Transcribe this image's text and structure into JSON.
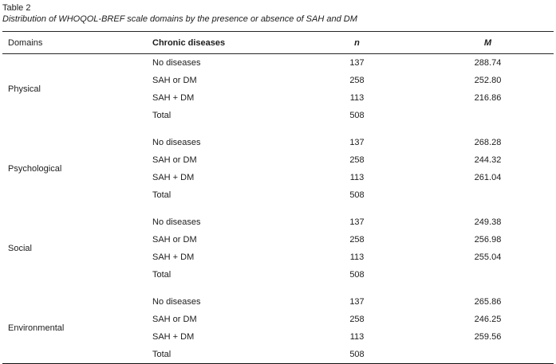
{
  "table": {
    "label": "Table 2",
    "caption": "Distribution of WHOQOL-BREF scale domains by the presence or absence of SAH and DM",
    "columns": [
      "Domains",
      "Chronic diseases",
      "n",
      "M"
    ],
    "sections": [
      {
        "domain": "Physical",
        "rows": [
          {
            "disease": "No diseases",
            "n": "137",
            "m": "288.74"
          },
          {
            "disease": "SAH or DM",
            "n": "258",
            "m": "252.80"
          },
          {
            "disease": "SAH + DM",
            "n": "113",
            "m": "216.86"
          },
          {
            "disease": "Total",
            "n": "508",
            "m": ""
          }
        ]
      },
      {
        "domain": "Psychological",
        "rows": [
          {
            "disease": "No diseases",
            "n": "137",
            "m": "268.28"
          },
          {
            "disease": "SAH or DM",
            "n": "258",
            "m": "244.32"
          },
          {
            "disease": "SAH + DM",
            "n": "113",
            "m": "261.04"
          },
          {
            "disease": "Total",
            "n": "508",
            "m": ""
          }
        ]
      },
      {
        "domain": "Social",
        "rows": [
          {
            "disease": "No diseases",
            "n": "137",
            "m": "249.38"
          },
          {
            "disease": "SAH or DM",
            "n": "258",
            "m": "256.98"
          },
          {
            "disease": "SAH + DM",
            "n": "113",
            "m": "255.04"
          },
          {
            "disease": "Total",
            "n": "508",
            "m": ""
          }
        ]
      },
      {
        "domain": "Environmental",
        "rows": [
          {
            "disease": "No diseases",
            "n": "137",
            "m": "265.86"
          },
          {
            "disease": "SAH or DM",
            "n": "258",
            "m": "246.25"
          },
          {
            "disease": "SAH + DM",
            "n": "113",
            "m": "259.56"
          },
          {
            "disease": "Total",
            "n": "508",
            "m": ""
          }
        ]
      }
    ]
  }
}
